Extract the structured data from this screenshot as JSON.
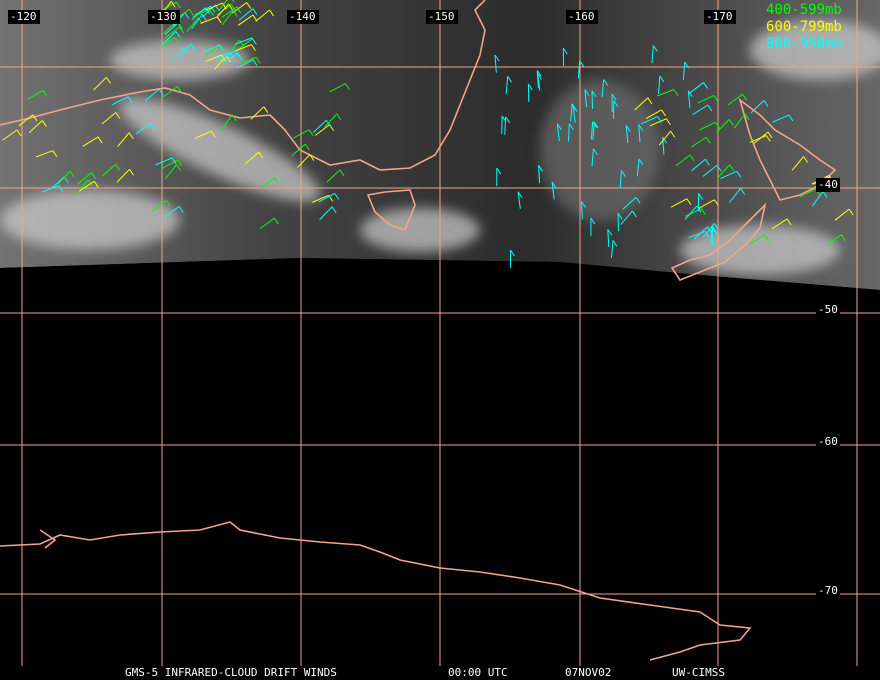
{
  "map": {
    "longitude_labels": [
      "-120",
      "-130",
      "-140",
      "-150",
      "-160",
      "-170"
    ],
    "latitude_labels": [
      "-40",
      "-50",
      "-60",
      "-70"
    ],
    "legend": [
      {
        "label": "400-599mb",
        "color": "#00ff00"
      },
      {
        "label": "600-799mb",
        "color": "#ffff00"
      },
      {
        "label": "800-950mb",
        "color": "#00ffff"
      }
    ],
    "footer": [
      "GMS-5 INFRARED-CLOUD DRIFT WINDS",
      "00:00 UTC",
      "07NOV02",
      "UW-CIMSS"
    ]
  }
}
